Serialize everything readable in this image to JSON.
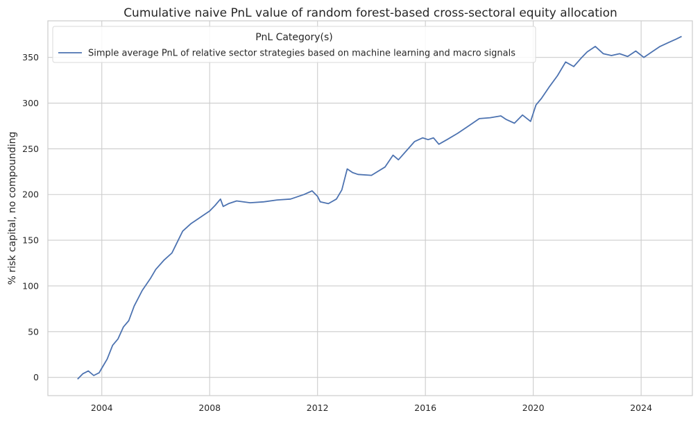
{
  "chart_data": {
    "type": "line",
    "title": "Cumulative naive PnL value of random forest-based cross-sectoral equity allocation",
    "xlabel": "",
    "ylabel": "% risk capital, no compounding",
    "xlim": [
      2002.0,
      2025.9
    ],
    "ylim": [
      -20,
      390
    ],
    "x_ticks": [
      2004,
      2008,
      2012,
      2016,
      2020,
      2024
    ],
    "x_tick_labels": [
      "2004",
      "2008",
      "2012",
      "2016",
      "2020",
      "2024"
    ],
    "y_ticks": [
      0,
      50,
      100,
      150,
      200,
      250,
      300,
      350
    ],
    "y_tick_labels": [
      "0",
      "50",
      "100",
      "150",
      "200",
      "250",
      "300",
      "350"
    ],
    "grid": true,
    "legend": {
      "title": "PnL Category(s)",
      "placement": "top-left",
      "entries": [
        "Simple average PnL of relative sector strategies based on machine learning and macro signals"
      ]
    },
    "series": [
      {
        "name": "Simple average PnL of relative sector strategies based on machine learning and macro signals",
        "color": "#4c72b0",
        "x": [
          2003.1,
          2003.3,
          2003.5,
          2003.7,
          2003.9,
          2004.0,
          2004.2,
          2004.4,
          2004.6,
          2004.8,
          2005.0,
          2005.2,
          2005.5,
          2005.8,
          2006.0,
          2006.3,
          2006.6,
          2006.8,
          2007.0,
          2007.3,
          2007.6,
          2007.8,
          2008.0,
          2008.2,
          2008.4,
          2008.5,
          2008.7,
          2009.0,
          2009.5,
          2010.0,
          2010.5,
          2011.0,
          2011.5,
          2011.8,
          2012.0,
          2012.1,
          2012.4,
          2012.7,
          2012.9,
          2013.1,
          2013.3,
          2013.5,
          2014.0,
          2014.5,
          2014.8,
          2015.0,
          2015.3,
          2015.6,
          2015.9,
          2016.1,
          2016.3,
          2016.5,
          2016.8,
          2017.2,
          2017.6,
          2018.0,
          2018.4,
          2018.8,
          2019.0,
          2019.3,
          2019.6,
          2019.9,
          2020.1,
          2020.3,
          2020.6,
          2020.9,
          2021.2,
          2021.5,
          2021.8,
          2022.0,
          2022.3,
          2022.6,
          2022.9,
          2023.2,
          2023.5,
          2023.8,
          2024.1,
          2024.4,
          2024.7,
          2025.0,
          2025.3,
          2025.5
        ],
        "values": [
          -2,
          4,
          7,
          2,
          5,
          10,
          20,
          35,
          42,
          55,
          62,
          78,
          95,
          108,
          118,
          128,
          136,
          148,
          160,
          168,
          174,
          178,
          182,
          188,
          195,
          187,
          190,
          193,
          191,
          192,
          194,
          195,
          200,
          204,
          198,
          192,
          190,
          195,
          205,
          228,
          224,
          222,
          221,
          230,
          243,
          238,
          248,
          258,
          262,
          260,
          262,
          255,
          260,
          267,
          275,
          283,
          284,
          286,
          282,
          278,
          287,
          280,
          298,
          305,
          318,
          330,
          345,
          340,
          350,
          356,
          362,
          354,
          352,
          354,
          351,
          357,
          350,
          356,
          362,
          366,
          370,
          373
        ]
      }
    ]
  }
}
